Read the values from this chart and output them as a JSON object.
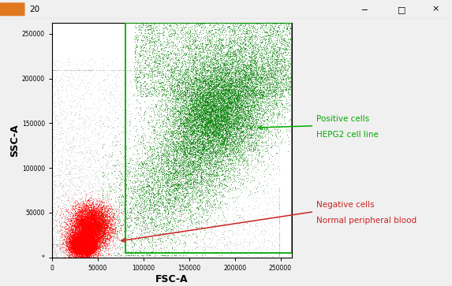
{
  "xlabel": "FSC-A",
  "ylabel": "SSC-A",
  "xlim": [
    0,
    262144
  ],
  "ylim": [
    0,
    262144
  ],
  "xticks": [
    0,
    50000,
    100000,
    150000,
    200000,
    250000
  ],
  "yticks": [
    0,
    50000,
    100000,
    150000,
    200000,
    250000
  ],
  "xtick_labels": [
    "0",
    "50000",
    "100000",
    "150000",
    "200000",
    "250000"
  ],
  "ytick_labels": [
    "*",
    "50000",
    "100000",
    "150000",
    "200000",
    "250000"
  ],
  "plot_bg_color": "#ffffff",
  "green_color": "#008000",
  "red_color": "#ff0000",
  "gray_color": "#999999",
  "annotation_green_color": "#00aa00",
  "annotation_red_color": "#cc2222",
  "green_label_line1": "Positive cells",
  "green_label_line2": "HEPG2 cell line",
  "red_label_line1": "Negative cells",
  "red_label_line2": "Normal peripheral blood",
  "n_green": 12000,
  "n_red": 7000,
  "n_gray": 4000,
  "window_title": "20",
  "window_bg": "#f0f0f0",
  "window_border": "#cccccc",
  "gate_x_start": 80000,
  "gate_y_start": 5000,
  "gate_y_end": 262144
}
